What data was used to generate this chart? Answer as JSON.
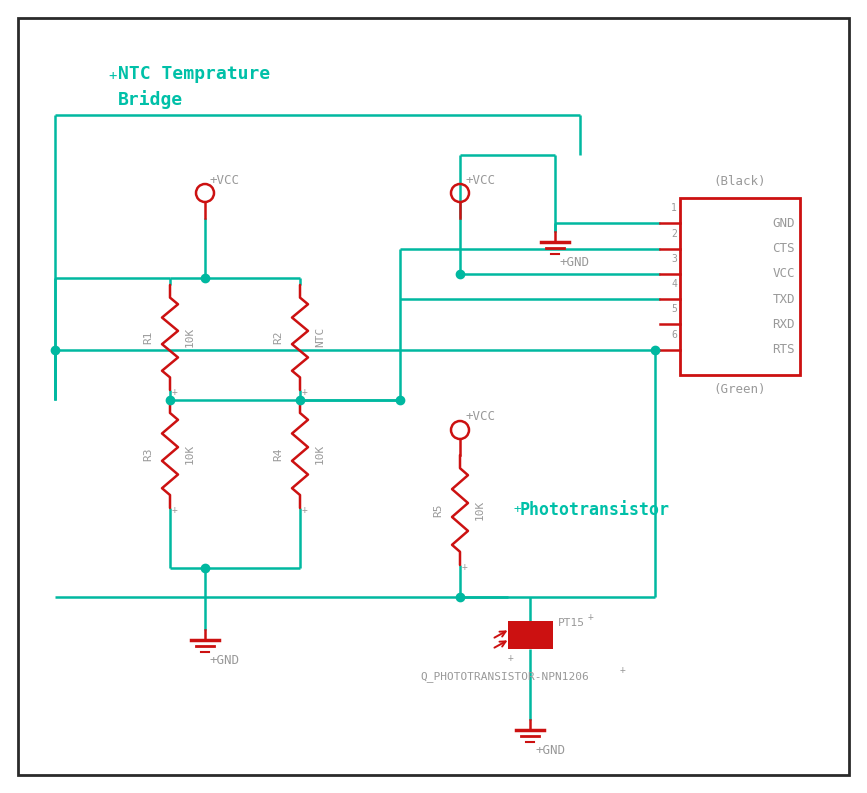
{
  "bg_color": "#ffffff",
  "border_color": "#2a2a2a",
  "wire_color": "#00b8a0",
  "component_color": "#cc1111",
  "label_color": "#999999",
  "green_text_color": "#00c0a8",
  "title": "NTC Temprature\nBridge",
  "phototransistor_label": "Phototransistor",
  "connector_pins": [
    "GND",
    "CTS",
    "VCC",
    "TXD",
    "RXD",
    "RTS"
  ],
  "connector_label_top": "(Black)",
  "connector_label_bottom": "(Green)"
}
